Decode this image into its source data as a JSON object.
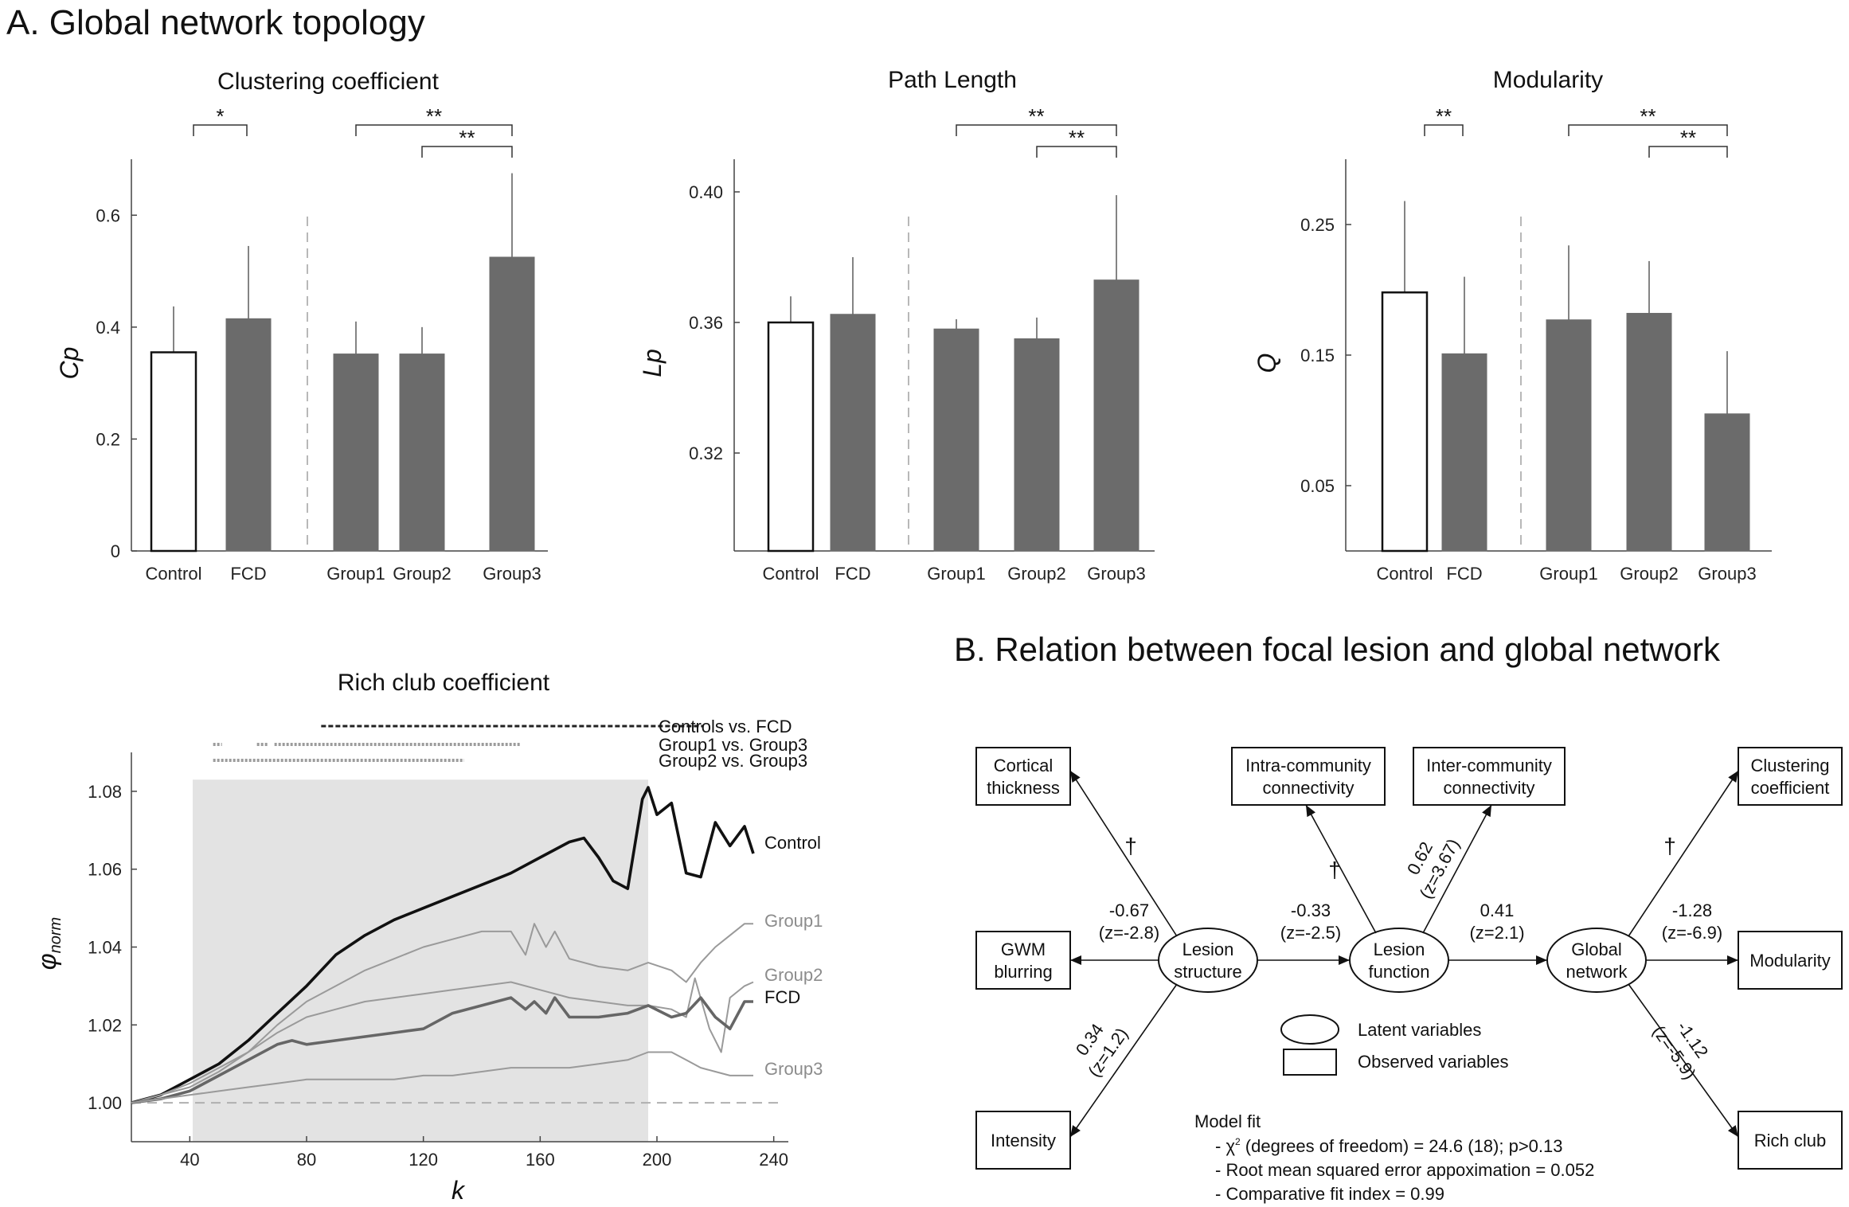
{
  "section_a_title": "A. Global network topology",
  "section_b_title": "B. Relation between focal lesion and global network",
  "chart_data": [
    {
      "type": "bar",
      "title": "Clustering coefficient",
      "ylabel": "Cp",
      "ylim": [
        0,
        0.7
      ],
      "yticks": [
        "0",
        "0.2",
        "0.4",
        "0.6"
      ],
      "categories": [
        "Control",
        "FCD",
        "Group1",
        "Group2",
        "Group3"
      ],
      "values": [
        0.355,
        0.415,
        0.352,
        0.352,
        0.525
      ],
      "error_upper": [
        0.437,
        0.545,
        0.41,
        0.4,
        0.675
      ],
      "bar_styles": [
        "outline",
        "filled",
        "filled",
        "filled",
        "filled"
      ],
      "significance": [
        {
          "from": 0,
          "to": 1,
          "label": "*"
        },
        {
          "from": 2,
          "to": 4,
          "label": "**"
        },
        {
          "from": 3,
          "to": 4,
          "label": "**"
        }
      ]
    },
    {
      "type": "bar",
      "title": "Path Length",
      "ylabel": "Lp",
      "ylim": [
        0.29,
        0.41
      ],
      "yticks": [
        "0.32",
        "0.36",
        "0.40"
      ],
      "categories": [
        "Control",
        "FCD",
        "Group1",
        "Group2",
        "Group3"
      ],
      "values": [
        0.36,
        0.3625,
        0.358,
        0.355,
        0.373
      ],
      "error_upper": [
        0.368,
        0.38,
        0.361,
        0.3615,
        0.399
      ],
      "bar_styles": [
        "outline",
        "filled",
        "filled",
        "filled",
        "filled"
      ],
      "significance": [
        {
          "from": 2,
          "to": 4,
          "label": "**"
        },
        {
          "from": 3,
          "to": 4,
          "label": "**"
        }
      ]
    },
    {
      "type": "bar",
      "title": "Modularity",
      "ylabel": "Q",
      "ylim": [
        0.0,
        0.3
      ],
      "yticks": [
        "0.05",
        "0.15",
        "0.25"
      ],
      "categories": [
        "Control",
        "FCD",
        "Group1",
        "Group2",
        "Group3"
      ],
      "values": [
        0.198,
        0.151,
        0.177,
        0.182,
        0.105
      ],
      "error_upper": [
        0.268,
        0.21,
        0.234,
        0.222,
        0.153
      ],
      "bar_styles": [
        "outline",
        "filled",
        "filled",
        "filled",
        "filled"
      ],
      "significance": [
        {
          "from": 0,
          "to": 1,
          "label": "**"
        },
        {
          "from": 2,
          "to": 4,
          "label": "**"
        },
        {
          "from": 3,
          "to": 4,
          "label": "**"
        }
      ]
    },
    {
      "type": "line",
      "title": "Rich club coefficient",
      "xlabel": "k",
      "ylabel": "φnorm",
      "xlim": [
        20,
        245
      ],
      "ylim": [
        0.99,
        1.09
      ],
      "xticks": [
        40,
        80,
        120,
        160,
        200,
        240
      ],
      "yticks": [
        "1.00",
        "1.02",
        "1.04",
        "1.06",
        "1.08"
      ],
      "shaded_region": [
        41,
        197
      ],
      "reference_line": 1.0,
      "series": [
        {
          "name": "Control",
          "color": "#111111",
          "x": [
            20,
            30,
            40,
            50,
            60,
            70,
            80,
            90,
            100,
            110,
            120,
            130,
            140,
            150,
            160,
            170,
            175,
            180,
            185,
            190,
            195,
            197,
            200,
            205,
            210,
            215,
            220,
            225,
            230,
            233
          ],
          "y": [
            1.0,
            1.002,
            1.006,
            1.01,
            1.016,
            1.023,
            1.03,
            1.038,
            1.043,
            1.047,
            1.05,
            1.053,
            1.056,
            1.059,
            1.063,
            1.067,
            1.068,
            1.063,
            1.057,
            1.055,
            1.078,
            1.081,
            1.074,
            1.077,
            1.059,
            1.058,
            1.072,
            1.066,
            1.071,
            1.064
          ]
        },
        {
          "name": "Group1",
          "color": "#9a9a9a",
          "x": [
            20,
            30,
            40,
            50,
            60,
            70,
            80,
            90,
            100,
            110,
            120,
            130,
            140,
            150,
            155,
            158,
            162,
            165,
            170,
            180,
            190,
            197,
            205,
            210,
            215,
            220,
            225,
            230,
            233
          ],
          "y": [
            1.0,
            1.002,
            1.004,
            1.008,
            1.013,
            1.02,
            1.026,
            1.03,
            1.034,
            1.037,
            1.04,
            1.042,
            1.044,
            1.044,
            1.038,
            1.046,
            1.04,
            1.044,
            1.037,
            1.035,
            1.034,
            1.036,
            1.034,
            1.031,
            1.036,
            1.04,
            1.043,
            1.046,
            1.046
          ]
        },
        {
          "name": "Group2",
          "color": "#9a9a9a",
          "x": [
            20,
            30,
            40,
            50,
            60,
            70,
            80,
            90,
            100,
            110,
            120,
            130,
            140,
            150,
            160,
            170,
            180,
            190,
            197,
            205,
            210,
            213,
            218,
            222,
            225,
            230,
            233
          ],
          "y": [
            1.0,
            1.002,
            1.005,
            1.009,
            1.013,
            1.018,
            1.022,
            1.024,
            1.026,
            1.027,
            1.028,
            1.029,
            1.03,
            1.031,
            1.029,
            1.027,
            1.026,
            1.025,
            1.025,
            1.024,
            1.022,
            1.032,
            1.019,
            1.013,
            1.027,
            1.03,
            1.031
          ]
        },
        {
          "name": "FCD",
          "color": "#666666",
          "x": [
            20,
            30,
            40,
            50,
            60,
            70,
            75,
            80,
            90,
            100,
            110,
            120,
            130,
            140,
            150,
            155,
            158,
            162,
            165,
            170,
            180,
            190,
            197,
            205,
            210,
            215,
            220,
            225,
            230,
            233
          ],
          "y": [
            1.0,
            1.001,
            1.003,
            1.007,
            1.011,
            1.015,
            1.016,
            1.015,
            1.016,
            1.017,
            1.018,
            1.019,
            1.023,
            1.025,
            1.027,
            1.024,
            1.026,
            1.023,
            1.027,
            1.022,
            1.022,
            1.023,
            1.025,
            1.022,
            1.023,
            1.027,
            1.022,
            1.019,
            1.026,
            1.026
          ]
        },
        {
          "name": "Group3",
          "color": "#9a9a9a",
          "x": [
            20,
            30,
            40,
            50,
            60,
            70,
            80,
            90,
            100,
            110,
            120,
            130,
            140,
            150,
            160,
            170,
            180,
            190,
            197,
            205,
            210,
            215,
            220,
            225,
            230,
            233
          ],
          "y": [
            1.0,
            1.001,
            1.002,
            1.003,
            1.004,
            1.005,
            1.006,
            1.006,
            1.006,
            1.006,
            1.007,
            1.007,
            1.008,
            1.009,
            1.009,
            1.009,
            1.01,
            1.011,
            1.013,
            1.013,
            1.011,
            1.009,
            1.008,
            1.007,
            1.007,
            1.007
          ]
        }
      ],
      "significance_bars": [
        {
          "label": "Controls vs. FCD",
          "segments": [
            [
              85,
              216
            ]
          ],
          "style": "dashed-dark"
        },
        {
          "label": "Group1 vs. Group3",
          "segments": [
            [
              48,
              51
            ],
            [
              63,
              67
            ],
            [
              69,
              153
            ]
          ],
          "style": "dotted-light"
        },
        {
          "label": "Group2 vs. Group3",
          "segments": [
            [
              48,
              134
            ]
          ],
          "style": "dotted-light"
        }
      ]
    }
  ],
  "diagram": {
    "latent": {
      "structure": "Lesion\nstructure",
      "function": "Lesion\nfunction",
      "network": "Global\nnetwork"
    },
    "observed": {
      "cortical": "Cortical\nthickness",
      "gwm": "GWM\nblurring",
      "intensity": "Intensity",
      "intra": "Intra-community\nconnectivity",
      "inter": "Inter-community\nconnectivity",
      "clustering": "Clustering\ncoefficient",
      "modularity": "Modularity",
      "richclub": "Rich club"
    },
    "paths": {
      "cortical": "†",
      "gwm": "-0.67\n(z=-2.8)",
      "intensity": "0.34\n(z=1.2)",
      "struct_func": "-0.33\n(z=-2.5)",
      "intra": "†",
      "inter": "0.62\n(z=3.67)",
      "func_net": "0.41\n(z=2.1)",
      "clustering": "†",
      "modularity": "-1.28\n(z=-6.9)",
      "richclub": "-1.12\n(z=-5.9)"
    },
    "legend": {
      "latent": "Latent variables",
      "observed": "Observed variables"
    },
    "model_fit": {
      "title": "Model fit",
      "chi_prefix": "- ",
      "chi_symbol": "χ",
      "chi_sup": "2",
      "chi_rest": " (degrees of freedom) = 24.6 (18); p>0.13",
      "rmsea": "- Root mean squared error appoximation = 0.052",
      "cfi": "- Comparative fit index = 0.99"
    }
  }
}
